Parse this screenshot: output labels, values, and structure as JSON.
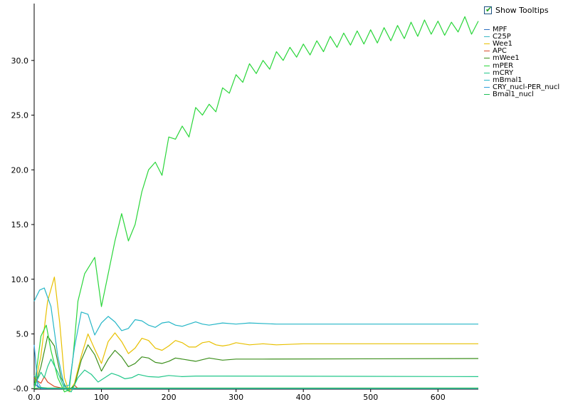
{
  "toolbar": {
    "show_tooltips_label": "Show Tooltips",
    "show_tooltips_checked": true,
    "check_glyph": "✔"
  },
  "colors": {
    "axis": "#000000",
    "background": "#ffffff"
  },
  "chart_data": {
    "type": "line",
    "title": "",
    "xlabel": "",
    "ylabel": "",
    "xlim": [
      0,
      660
    ],
    "ylim": [
      -0.05,
      35.2
    ],
    "x_ticks": [
      0,
      100,
      200,
      300,
      400,
      500,
      600
    ],
    "x_tick_labels": [
      "0.0",
      "100",
      "200",
      "300",
      "400",
      "500",
      "600"
    ],
    "y_ticks": [
      0,
      5,
      10,
      15,
      20,
      25,
      30
    ],
    "y_tick_labels": [
      "-0.0",
      "5.0",
      "10.0",
      "15.0",
      "20.0",
      "25.0",
      "30.0"
    ],
    "grid": false,
    "legend_position": "top-right",
    "series": [
      {
        "name": "MPF",
        "color": "#2c6fc0",
        "points": [
          [
            0,
            0.5
          ],
          [
            5,
            0.2
          ],
          [
            10,
            0
          ],
          [
            20,
            0
          ],
          [
            660,
            0
          ]
        ]
      },
      {
        "name": "C25P",
        "color": "#3bb6c4",
        "points": [
          [
            0,
            1.2
          ],
          [
            4,
            0.8
          ],
          [
            10,
            0.1
          ],
          [
            20,
            0
          ],
          [
            660,
            0
          ]
        ]
      },
      {
        "name": "Wee1",
        "color": "#e8c000",
        "points": [
          [
            0,
            0
          ],
          [
            10,
            3.0
          ],
          [
            20,
            8.0
          ],
          [
            30,
            10.2
          ],
          [
            38,
            6.0
          ],
          [
            45,
            1.0
          ],
          [
            52,
            -0.3
          ],
          [
            60,
            0.5
          ],
          [
            70,
            3.0
          ],
          [
            80,
            5.0
          ],
          [
            90,
            3.6
          ],
          [
            100,
            2.3
          ],
          [
            110,
            4.3
          ],
          [
            120,
            5.1
          ],
          [
            130,
            4.3
          ],
          [
            140,
            3.2
          ],
          [
            150,
            3.7
          ],
          [
            160,
            4.6
          ],
          [
            170,
            4.4
          ],
          [
            180,
            3.7
          ],
          [
            190,
            3.5
          ],
          [
            200,
            3.9
          ],
          [
            210,
            4.4
          ],
          [
            220,
            4.2
          ],
          [
            230,
            3.8
          ],
          [
            240,
            3.8
          ],
          [
            250,
            4.2
          ],
          [
            260,
            4.3
          ],
          [
            270,
            4.0
          ],
          [
            280,
            3.9
          ],
          [
            290,
            4.0
          ],
          [
            300,
            4.2
          ],
          [
            320,
            4.0
          ],
          [
            340,
            4.1
          ],
          [
            360,
            4.0
          ],
          [
            400,
            4.1
          ],
          [
            660,
            4.1
          ]
        ]
      },
      {
        "name": "APC",
        "color": "#d94a2a",
        "points": [
          [
            0,
            1.0
          ],
          [
            5,
            0.7
          ],
          [
            10,
            0.5
          ],
          [
            15,
            1.1
          ],
          [
            20,
            0.6
          ],
          [
            30,
            0.2
          ],
          [
            45,
            0
          ],
          [
            55,
            0
          ],
          [
            60,
            0.3
          ],
          [
            65,
            0
          ],
          [
            660,
            0
          ]
        ]
      },
      {
        "name": "mWee1",
        "color": "#3c8f1c",
        "points": [
          [
            0,
            0
          ],
          [
            10,
            2.0
          ],
          [
            20,
            4.8
          ],
          [
            30,
            3.9
          ],
          [
            40,
            1.0
          ],
          [
            50,
            -0.2
          ],
          [
            60,
            0.3
          ],
          [
            70,
            2.6
          ],
          [
            80,
            4.0
          ],
          [
            90,
            3.1
          ],
          [
            100,
            1.6
          ],
          [
            110,
            2.7
          ],
          [
            120,
            3.5
          ],
          [
            130,
            2.9
          ],
          [
            140,
            2.0
          ],
          [
            150,
            2.3
          ],
          [
            160,
            2.9
          ],
          [
            170,
            2.8
          ],
          [
            180,
            2.4
          ],
          [
            190,
            2.3
          ],
          [
            200,
            2.5
          ],
          [
            210,
            2.8
          ],
          [
            220,
            2.7
          ],
          [
            240,
            2.5
          ],
          [
            260,
            2.8
          ],
          [
            280,
            2.6
          ],
          [
            300,
            2.7
          ],
          [
            340,
            2.7
          ],
          [
            660,
            2.75
          ]
        ]
      },
      {
        "name": "mPER",
        "color": "#2ad63a",
        "points": [
          [
            0,
            0
          ],
          [
            10,
            4.8
          ],
          [
            18,
            5.8
          ],
          [
            25,
            3.5
          ],
          [
            35,
            1.0
          ],
          [
            45,
            -0.3
          ],
          [
            52,
            -0.1
          ],
          [
            58,
            3.0
          ],
          [
            65,
            8.0
          ],
          [
            75,
            10.5
          ],
          [
            90,
            12.0
          ],
          [
            100,
            7.5
          ],
          [
            110,
            10.5
          ],
          [
            120,
            13.5
          ],
          [
            130,
            16.0
          ],
          [
            140,
            13.5
          ],
          [
            150,
            15.0
          ],
          [
            160,
            18.0
          ],
          [
            170,
            20.0
          ],
          [
            180,
            20.7
          ],
          [
            190,
            19.5
          ],
          [
            200,
            23.0
          ],
          [
            210,
            22.8
          ],
          [
            220,
            24.0
          ],
          [
            230,
            23.0
          ],
          [
            240,
            25.7
          ],
          [
            250,
            25.0
          ],
          [
            260,
            26.0
          ],
          [
            270,
            25.3
          ],
          [
            280,
            27.5
          ],
          [
            290,
            27.0
          ],
          [
            300,
            28.7
          ],
          [
            310,
            28.0
          ],
          [
            320,
            29.7
          ],
          [
            330,
            28.8
          ],
          [
            340,
            30.0
          ],
          [
            350,
            29.2
          ],
          [
            360,
            30.8
          ],
          [
            370,
            30.0
          ],
          [
            380,
            31.2
          ],
          [
            390,
            30.3
          ],
          [
            400,
            31.5
          ],
          [
            410,
            30.5
          ],
          [
            420,
            31.8
          ],
          [
            430,
            30.8
          ],
          [
            440,
            32.2
          ],
          [
            450,
            31.2
          ],
          [
            460,
            32.5
          ],
          [
            470,
            31.4
          ],
          [
            480,
            32.7
          ],
          [
            490,
            31.5
          ],
          [
            500,
            32.8
          ],
          [
            510,
            31.6
          ],
          [
            520,
            33.0
          ],
          [
            530,
            31.8
          ],
          [
            540,
            33.2
          ],
          [
            550,
            32.0
          ],
          [
            560,
            33.5
          ],
          [
            570,
            32.2
          ],
          [
            580,
            33.7
          ],
          [
            590,
            32.4
          ],
          [
            600,
            33.6
          ],
          [
            610,
            32.3
          ],
          [
            620,
            33.5
          ],
          [
            630,
            32.6
          ],
          [
            640,
            34.0
          ],
          [
            650,
            32.4
          ],
          [
            660,
            33.6
          ]
        ]
      },
      {
        "name": "mCRY",
        "color": "#22c78a",
        "points": [
          [
            0,
            0.2
          ],
          [
            10,
            1.5
          ],
          [
            15,
            1.0
          ],
          [
            20,
            2.0
          ],
          [
            25,
            2.7
          ],
          [
            35,
            1.5
          ],
          [
            45,
            0
          ],
          [
            55,
            -0.3
          ],
          [
            65,
            1.0
          ],
          [
            75,
            1.7
          ],
          [
            85,
            1.3
          ],
          [
            95,
            0.6
          ],
          [
            105,
            1.0
          ],
          [
            115,
            1.4
          ],
          [
            125,
            1.2
          ],
          [
            135,
            0.9
          ],
          [
            145,
            1.0
          ],
          [
            155,
            1.3
          ],
          [
            170,
            1.1
          ],
          [
            185,
            1.05
          ],
          [
            200,
            1.2
          ],
          [
            220,
            1.1
          ],
          [
            240,
            1.15
          ],
          [
            280,
            1.15
          ],
          [
            660,
            1.1
          ]
        ]
      },
      {
        "name": "mBmal1",
        "color": "#25b6c7",
        "points": [
          [
            0,
            8.0
          ],
          [
            8,
            9.0
          ],
          [
            15,
            9.2
          ],
          [
            25,
            7.5
          ],
          [
            35,
            3.0
          ],
          [
            45,
            0.2
          ],
          [
            52,
            0.3
          ],
          [
            60,
            3.8
          ],
          [
            70,
            7.0
          ],
          [
            80,
            6.8
          ],
          [
            90,
            4.9
          ],
          [
            100,
            6.0
          ],
          [
            110,
            6.6
          ],
          [
            120,
            6.1
          ],
          [
            130,
            5.3
          ],
          [
            140,
            5.5
          ],
          [
            150,
            6.3
          ],
          [
            160,
            6.2
          ],
          [
            170,
            5.8
          ],
          [
            180,
            5.6
          ],
          [
            190,
            6.0
          ],
          [
            200,
            6.1
          ],
          [
            210,
            5.8
          ],
          [
            220,
            5.7
          ],
          [
            230,
            5.9
          ],
          [
            240,
            6.1
          ],
          [
            250,
            5.9
          ],
          [
            260,
            5.8
          ],
          [
            280,
            6.0
          ],
          [
            300,
            5.9
          ],
          [
            320,
            6.0
          ],
          [
            360,
            5.9
          ],
          [
            660,
            5.9
          ]
        ]
      },
      {
        "name": "CRY_nucl-PER_nucl",
        "color": "#2f9edc",
        "points": [
          [
            0,
            4.0
          ],
          [
            3,
            2.0
          ],
          [
            5,
            0.3
          ],
          [
            10,
            0
          ],
          [
            20,
            0
          ],
          [
            660,
            0
          ]
        ]
      },
      {
        "name": "Bmal1_nucl",
        "color": "#1fbf57",
        "points": [
          [
            0,
            0
          ],
          [
            10,
            0.1
          ],
          [
            20,
            0.05
          ],
          [
            660,
            0.05
          ]
        ]
      }
    ]
  }
}
